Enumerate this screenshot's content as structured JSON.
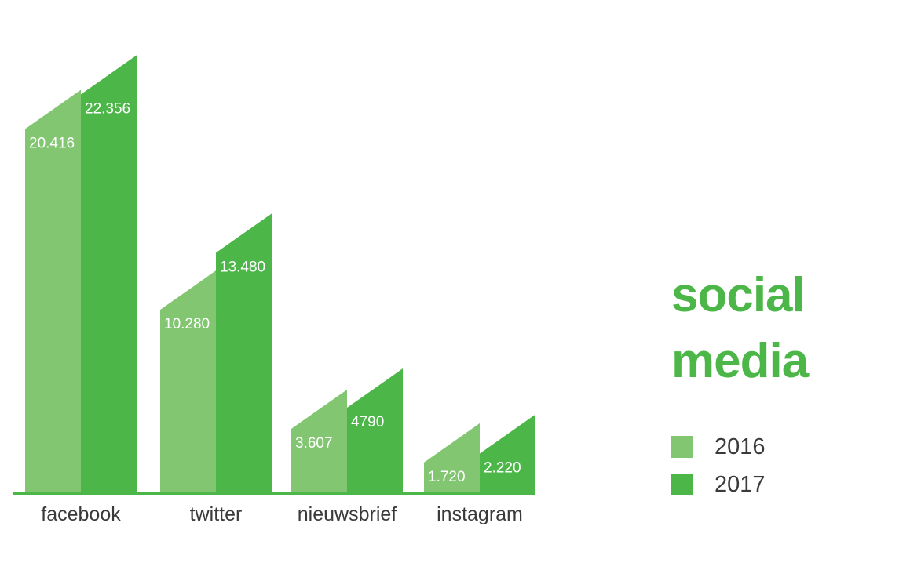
{
  "title_lines": [
    "social",
    "media"
  ],
  "colors": {
    "series_2016": "#82c672",
    "series_2017": "#4cb748",
    "title": "#4cb748",
    "baseline": "#4cb748",
    "value_label": "#ffffff",
    "category_label": "#3a3a3a"
  },
  "legend": [
    {
      "label": "2016",
      "color": "#82c672"
    },
    {
      "label": "2017",
      "color": "#4cb748"
    }
  ],
  "chart_data": {
    "type": "bar",
    "title": "social media",
    "categories": [
      "facebook",
      "twitter",
      "nieuwsbrief",
      "instagram"
    ],
    "series": [
      {
        "name": "2016",
        "values": [
          20416,
          10280,
          3607,
          1720
        ],
        "labels": [
          "20.416",
          "10.280",
          "3.607",
          "1.720"
        ]
      },
      {
        "name": "2017",
        "values": [
          22356,
          13480,
          4790,
          2220
        ],
        "labels": [
          "22.356",
          "13.480",
          "4790",
          "2.220"
        ]
      }
    ],
    "legend_position": "right",
    "grid": false,
    "xlabel": "",
    "ylabel": "",
    "ylim": [
      0,
      25000
    ]
  }
}
